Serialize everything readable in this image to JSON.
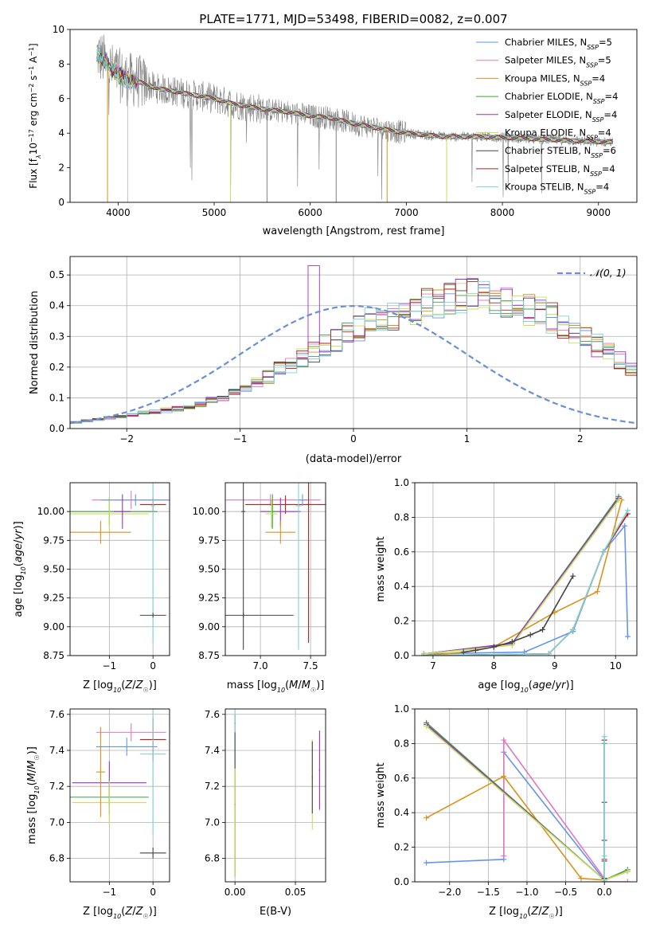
{
  "chart_data": [
    {
      "id": "spectrum",
      "type": "line",
      "title": "PLATE=1771, MJD=53498, FIBERID=0082, z=0.007",
      "xlabel": "wavelength [Angstrom, rest frame]",
      "ylabel": "Flux [f_λ 10^-17 erg cm^-2 s^-1 A^-1]",
      "xlim": [
        3500,
        9400
      ],
      "ylim": [
        0,
        10
      ],
      "xticks": [
        4000,
        5000,
        6000,
        7000,
        8000,
        9000
      ],
      "yticks": [
        0,
        2,
        4,
        6,
        8,
        10
      ],
      "grid": false,
      "legend": "top-right",
      "observed_color": "#808080",
      "observed_anchors": [
        [
          3780,
          8.6
        ],
        [
          3850,
          8.2
        ],
        [
          3950,
          7.6
        ],
        [
          4050,
          7.2
        ],
        [
          4200,
          7.0
        ],
        [
          4400,
          6.6
        ],
        [
          4600,
          6.4
        ],
        [
          4800,
          6.2
        ],
        [
          5000,
          6.0
        ],
        [
          5200,
          5.7
        ],
        [
          5500,
          5.4
        ],
        [
          5800,
          5.2
        ],
        [
          6000,
          5.0
        ],
        [
          6200,
          4.9
        ],
        [
          6500,
          4.5
        ],
        [
          6800,
          4.2
        ],
        [
          7000,
          4.0
        ],
        [
          7400,
          3.8
        ],
        [
          7800,
          3.8
        ],
        [
          8200,
          3.7
        ],
        [
          8600,
          3.6
        ],
        [
          9000,
          3.5
        ],
        [
          9150,
          3.5
        ]
      ],
      "series": [
        {
          "name": "Chabrier MILES, N_SSP=5",
          "label": "Chabrier MILES, N",
          "sub": "SSP",
          "n": "=5",
          "color": "#6495ed"
        },
        {
          "name": "Salpeter MILES, N_SSP=5",
          "label": "Salpeter MILES, N",
          "sub": "SSP",
          "n": "=5",
          "color": "#e377c2"
        },
        {
          "name": "Kroupa MILES, N_SSP=4",
          "label": "Kroupa MILES, N",
          "sub": "SSP",
          "n": "=4",
          "color": "#d8931a"
        },
        {
          "name": "Chabrier ELODIE, N_SSP=4",
          "label": "Chabrier ELODIE, N",
          "sub": "SSP",
          "n": "=4",
          "color": "#3f9f3f"
        },
        {
          "name": "Salpeter ELODIE, N_SSP=4",
          "label": "Salpeter ELODIE, N",
          "sub": "SSP",
          "n": "=4",
          "color": "#9932cc"
        },
        {
          "name": "Kroupa ELODIE, N_SSP=4",
          "label": "Kroupa ELODIE, N",
          "sub": "SSP",
          "n": "=4",
          "color": "#c5e15a"
        },
        {
          "name": "Chabrier STELIB, N_SSP=6",
          "label": "Chabrier STELIB, N",
          "sub": "SSP",
          "n": "=6",
          "color": "#444444"
        },
        {
          "name": "Salpeter STELIB, N_SSP=4",
          "label": "Salpeter STELIB, N",
          "sub": "SSP",
          "n": "=4",
          "color": "#b22222"
        },
        {
          "name": "Kroupa STELIB, N_SSP=4",
          "label": "Kroupa STELIB, N",
          "sub": "SSP",
          "n": "=4",
          "color": "#7fd4d4"
        }
      ]
    },
    {
      "id": "residuals",
      "type": "histogram",
      "xlabel": "(data-model)/error",
      "ylabel": "Normed distribution",
      "xlim": [
        -2.5,
        2.5
      ],
      "ylim": [
        0,
        0.56
      ],
      "xticks": [
        -2,
        -1,
        0,
        1,
        2
      ],
      "yticks": [
        0.0,
        0.1,
        0.2,
        0.3,
        0.4,
        0.5
      ],
      "grid": true,
      "legend": "top-right",
      "gaussian_label": "𝒩(0, 1)",
      "gaussian_color": "#6a8fd6",
      "bin_width": 0.1,
      "bin_start": -2.5,
      "base_values": [
        0.02,
        0.025,
        0.03,
        0.035,
        0.04,
        0.045,
        0.05,
        0.055,
        0.06,
        0.065,
        0.07,
        0.08,
        0.09,
        0.1,
        0.115,
        0.13,
        0.15,
        0.17,
        0.19,
        0.21,
        0.23,
        0.25,
        0.27,
        0.29,
        0.31,
        0.33,
        0.35,
        0.36,
        0.37,
        0.38,
        0.39,
        0.4,
        0.41,
        0.42,
        0.43,
        0.44,
        0.43,
        0.42,
        0.41,
        0.4,
        0.39,
        0.38,
        0.36,
        0.34,
        0.32,
        0.3,
        0.27,
        0.25,
        0.22,
        0.2,
        0.18,
        0.17,
        0.16,
        0.15,
        0.14,
        0.12,
        0.1,
        0.09,
        0.08,
        0.07,
        0.065,
        0.06,
        0.055,
        0.05,
        0.045,
        0.04,
        0.035,
        0.03,
        0.025,
        0.03
      ]
    },
    {
      "id": "age_vs_Z",
      "type": "errorbar",
      "xlabel": "Z [log10(Z/Z☉)]",
      "ylabel": "age [log10(age/yr)]",
      "xlim": [
        -1.9,
        0.38
      ],
      "ylim": [
        8.75,
        10.25
      ],
      "xticks": [
        -1,
        0
      ],
      "yticks": [
        8.75,
        9.0,
        9.25,
        9.5,
        9.75,
        10.0
      ],
      "grid": true,
      "points": [
        {
          "x": -1.0,
          "y": 10.0,
          "xerr": 1.1,
          "yerr": 0.12,
          "color": "#3f9f3f"
        },
        {
          "x": -1.0,
          "y": 9.98,
          "xerr": 0.9,
          "yerr": 0.15,
          "color": "#c5e15a"
        },
        {
          "x": -1.2,
          "y": 9.82,
          "xerr": 0.7,
          "yerr": 0.1,
          "color": "#d8931a"
        },
        {
          "x": -0.5,
          "y": 10.1,
          "xerr": 0.9,
          "yerr": 0.08,
          "color": "#e377c2"
        },
        {
          "x": -0.4,
          "y": 10.1,
          "xerr": 0.8,
          "yerr": 0.05,
          "color": "#6495ed"
        },
        {
          "x": -0.7,
          "y": 10.0,
          "xerr": 0.2,
          "yerr": 0.15,
          "color": "#9932cc"
        },
        {
          "x": 0.0,
          "y": 10.06,
          "xerr": 0.3,
          "yerr": 0.06,
          "color": "#b22222"
        },
        {
          "x": 0.0,
          "y": 10.05,
          "xerr": 0.05,
          "yerr": 1.2,
          "color": "#7fd4d4"
        },
        {
          "x": 0.0,
          "y": 9.1,
          "xerr": 0.3,
          "yerr": 0.02,
          "color": "#444444"
        }
      ]
    },
    {
      "id": "age_vs_mass",
      "type": "errorbar",
      "xlabel": "mass [log10(M/M☉)]",
      "ylabel": "",
      "xlim": [
        6.65,
        7.65
      ],
      "ylim": [
        8.75,
        10.25
      ],
      "xticks": [
        7.0,
        7.5
      ],
      "yticks": [
        8.75,
        9.0,
        9.25,
        9.5,
        9.75,
        10.0
      ],
      "grid": true,
      "points": [
        {
          "x": 7.1,
          "y": 10.1,
          "xerr": 0.5,
          "yerr": 0.05,
          "color": "#e377c2"
        },
        {
          "x": 7.25,
          "y": 10.06,
          "xerr": 0.4,
          "yerr": 0.08,
          "color": "#b22222"
        },
        {
          "x": 7.2,
          "y": 10.0,
          "xerr": 0.2,
          "yerr": 0.12,
          "color": "#9932cc"
        },
        {
          "x": 7.2,
          "y": 9.82,
          "xerr": 0.15,
          "yerr": 0.1,
          "color": "#d8931a"
        },
        {
          "x": 7.12,
          "y": 10.0,
          "xerr": 0.05,
          "yerr": 0.15,
          "color": "#3f9f3f"
        },
        {
          "x": 7.11,
          "y": 9.98,
          "xerr": 0.06,
          "yerr": 0.12,
          "color": "#c5e15a"
        },
        {
          "x": 7.42,
          "y": 10.1,
          "xerr": 0.05,
          "yerr": 0.05,
          "color": "#6495ed"
        },
        {
          "x": 7.38,
          "y": 10.05,
          "xerr": 0.03,
          "yerr": 1.25,
          "color": "#7fd4d4"
        },
        {
          "x": 6.83,
          "y": 9.1,
          "xerr": 0.5,
          "yerr": 0.02,
          "color": "#444444"
        },
        {
          "x": 6.83,
          "y": 10.0,
          "xerr": 0.02,
          "yerr": 1.2,
          "color": "#444444"
        },
        {
          "x": 7.48,
          "y": 10.06,
          "xerr": 0.02,
          "yerr": 1.2,
          "color": "#b22222"
        }
      ]
    },
    {
      "id": "massweight_vs_age",
      "type": "line",
      "xlabel": "age [log10(age/yr)]",
      "ylabel": "mass weight",
      "xlim": [
        6.7,
        10.35
      ],
      "ylim": [
        0,
        1
      ],
      "xticks": [
        7,
        8,
        9,
        10
      ],
      "yticks": [
        0.0,
        0.2,
        0.4,
        0.6,
        0.8,
        1.0
      ],
      "grid": true,
      "series": [
        {
          "name": "Chabrier MILES",
          "color": "#6495ed",
          "x": [
            6.85,
            8.5,
            9.3,
            9.8,
            10.15,
            10.2
          ],
          "y": [
            0.01,
            0.02,
            0.14,
            0.6,
            0.75,
            0.11
          ]
        },
        {
          "name": "Salpeter MILES",
          "color": "#e377c2",
          "x": [
            6.85,
            8.9,
            9.3,
            9.8,
            10.2
          ],
          "y": [
            0.0,
            0.01,
            0.15,
            0.6,
            0.82
          ]
        },
        {
          "name": "Kroupa MILES",
          "color": "#d8931a",
          "x": [
            6.85,
            7.5,
            8.0,
            9.0,
            9.7,
            10.1
          ],
          "y": [
            0.0,
            0.02,
            0.05,
            0.25,
            0.37,
            0.9
          ]
        },
        {
          "name": "Chabrier ELODIE",
          "color": "#3f9f3f",
          "x": [
            6.85,
            8.3,
            10.05
          ],
          "y": [
            0.01,
            0.07,
            0.92
          ]
        },
        {
          "name": "Salpeter ELODIE",
          "color": "#9932cc",
          "x": [
            6.85,
            8.3,
            10.05
          ],
          "y": [
            0.01,
            0.07,
            0.91
          ]
        },
        {
          "name": "Kroupa ELODIE",
          "color": "#c5e15a",
          "x": [
            6.85,
            8.3,
            10.05
          ],
          "y": [
            0.01,
            0.06,
            0.9
          ]
        },
        {
          "name": "Chabrier STELIB",
          "color": "#444444",
          "x": [
            7.5,
            7.7,
            8.0,
            8.3,
            8.6,
            8.8,
            9.3
          ],
          "y": [
            0.02,
            0.03,
            0.05,
            0.08,
            0.12,
            0.15,
            0.46
          ]
        },
        {
          "name": "Salpeter STELIB",
          "color": "#b22222",
          "x": [
            6.85,
            8.9,
            9.3,
            9.8,
            10.2
          ],
          "y": [
            0.0,
            0.01,
            0.15,
            0.6,
            0.82
          ]
        },
        {
          "name": "Kroupa STELIB",
          "color": "#7fd4d4",
          "x": [
            6.85,
            8.9,
            9.3,
            9.8,
            10.2
          ],
          "y": [
            0.0,
            0.01,
            0.15,
            0.6,
            0.84
          ]
        }
      ]
    },
    {
      "id": "mass_vs_Z",
      "type": "errorbar",
      "xlabel": "Z [log10(Z/Z☉)]",
      "ylabel": "mass [log10(M/M☉)]",
      "xlim": [
        -1.9,
        0.38
      ],
      "ylim": [
        6.67,
        7.63
      ],
      "xticks": [
        -1,
        0
      ],
      "yticks": [
        6.8,
        7.0,
        7.2,
        7.4,
        7.6
      ],
      "grid": true,
      "points": [
        {
          "x": -1.0,
          "y": 7.22,
          "xerr": 0.85,
          "yerr": 0.12,
          "color": "#9932cc"
        },
        {
          "x": -1.0,
          "y": 7.14,
          "xerr": 0.9,
          "yerr": 0.1,
          "color": "#3f9f3f"
        },
        {
          "x": -1.0,
          "y": 7.11,
          "xerr": 0.85,
          "yerr": 0.12,
          "color": "#c5e15a"
        },
        {
          "x": -1.2,
          "y": 7.28,
          "xerr": 0.1,
          "yerr": 0.25,
          "color": "#d8931a"
        },
        {
          "x": -0.5,
          "y": 7.5,
          "xerr": 0.8,
          "yerr": 0.05,
          "color": "#e377c2"
        },
        {
          "x": -0.6,
          "y": 7.42,
          "xerr": 0.7,
          "yerr": 0.05,
          "color": "#6495ed"
        },
        {
          "x": 0.0,
          "y": 7.46,
          "xerr": 0.3,
          "yerr": 0.12,
          "color": "#b22222"
        },
        {
          "x": 0.0,
          "y": 7.38,
          "xerr": 0.3,
          "yerr": 0.45,
          "color": "#7fd4d4"
        },
        {
          "x": 0.0,
          "y": 6.83,
          "xerr": 0.3,
          "yerr": 0.03,
          "color": "#444444"
        }
      ]
    },
    {
      "id": "mass_vs_EBV",
      "type": "errorbar",
      "xlabel": "E(B-V)",
      "ylabel": "",
      "xlim": [
        -0.008,
        0.075
      ],
      "ylim": [
        6.67,
        7.63
      ],
      "xticks": [
        0.0,
        0.05
      ],
      "yticks": [
        6.8,
        7.0,
        7.2,
        7.4,
        7.6
      ],
      "grid": true,
      "points": [
        {
          "x": 0.0,
          "y": 7.55,
          "xerr": 0.0005,
          "yerr": 0.05,
          "color": "#b22222"
        },
        {
          "x": 0.0,
          "y": 7.2,
          "xerr": 0.0005,
          "yerr": 0.5,
          "color": "#7fd4d4"
        },
        {
          "x": 0.0,
          "y": 7.1,
          "xerr": 0.0005,
          "yerr": 0.4,
          "color": "#444444"
        },
        {
          "x": 0.0,
          "y": 7.0,
          "xerr": 0.0005,
          "yerr": 0.3,
          "color": "#c5e15a"
        },
        {
          "x": 0.064,
          "y": 7.21,
          "xerr": 0.0005,
          "yerr": 0.25,
          "color": "#c5e15a"
        },
        {
          "x": 0.064,
          "y": 7.25,
          "xerr": 0.0005,
          "yerr": 0.2,
          "color": "#444444"
        },
        {
          "x": 0.07,
          "y": 7.29,
          "xerr": 0.0005,
          "yerr": 0.22,
          "color": "#9932cc"
        }
      ]
    },
    {
      "id": "massweight_vs_Z",
      "type": "line",
      "xlabel": "Z [log10(Z/Z☉)]",
      "ylabel": "mass weight",
      "xlim": [
        -2.45,
        0.42
      ],
      "ylim": [
        0,
        1
      ],
      "xticks": [
        -2.0,
        -1.5,
        -1.0,
        -0.5,
        0.0
      ],
      "yticks": [
        0.0,
        0.2,
        0.4,
        0.6,
        0.8,
        1.0
      ],
      "grid": true,
      "series": [
        {
          "name": "Chabrier MILES",
          "color": "#6495ed",
          "x": [
            -2.3,
            -1.3,
            -1.3,
            0.0,
            0.0
          ],
          "y": [
            0.11,
            0.13,
            0.75,
            0.01,
            0.8
          ]
        },
        {
          "name": "Salpeter MILES",
          "color": "#e377c2",
          "x": [
            -1.3,
            -1.3,
            0.0,
            0.0,
            0.3
          ],
          "y": [
            0.15,
            0.82,
            0.02,
            0.0,
            0.0
          ]
        },
        {
          "name": "Kroupa MILES",
          "color": "#d8931a",
          "x": [
            -2.3,
            -1.3,
            -0.3,
            0.0
          ],
          "y": [
            0.37,
            0.61,
            0.02,
            0.01
          ]
        },
        {
          "name": "Chabrier ELODIE",
          "color": "#3f9f3f",
          "x": [
            -2.3,
            0.0,
            0.3
          ],
          "y": [
            0.92,
            0.01,
            0.07
          ]
        },
        {
          "name": "Salpeter ELODIE",
          "color": "#9932cc",
          "x": [
            -2.3,
            0.0,
            0.3
          ],
          "y": [
            0.91,
            0.01,
            0.06
          ]
        },
        {
          "name": "Kroupa ELODIE",
          "color": "#c5e15a",
          "x": [
            -2.3,
            0.0,
            0.3
          ],
          "y": [
            0.9,
            0.01,
            0.06
          ]
        },
        {
          "name": "Chabrier STELIB",
          "color": "#444444",
          "x": [
            0.0,
            0.0,
            0.0,
            0.0,
            0.0
          ],
          "y": [
            0.02,
            0.12,
            0.24,
            0.46,
            0.82
          ]
        },
        {
          "name": "Salpeter STELIB",
          "color": "#b22222",
          "x": [
            0.0,
            0.0,
            0.0
          ],
          "y": [
            0.0,
            0.13,
            0.82
          ]
        },
        {
          "name": "Kroupa STELIB",
          "color": "#7fd4d4",
          "x": [
            0.0,
            0.0,
            0.0
          ],
          "y": [
            0.01,
            0.15,
            0.84
          ]
        }
      ]
    }
  ]
}
